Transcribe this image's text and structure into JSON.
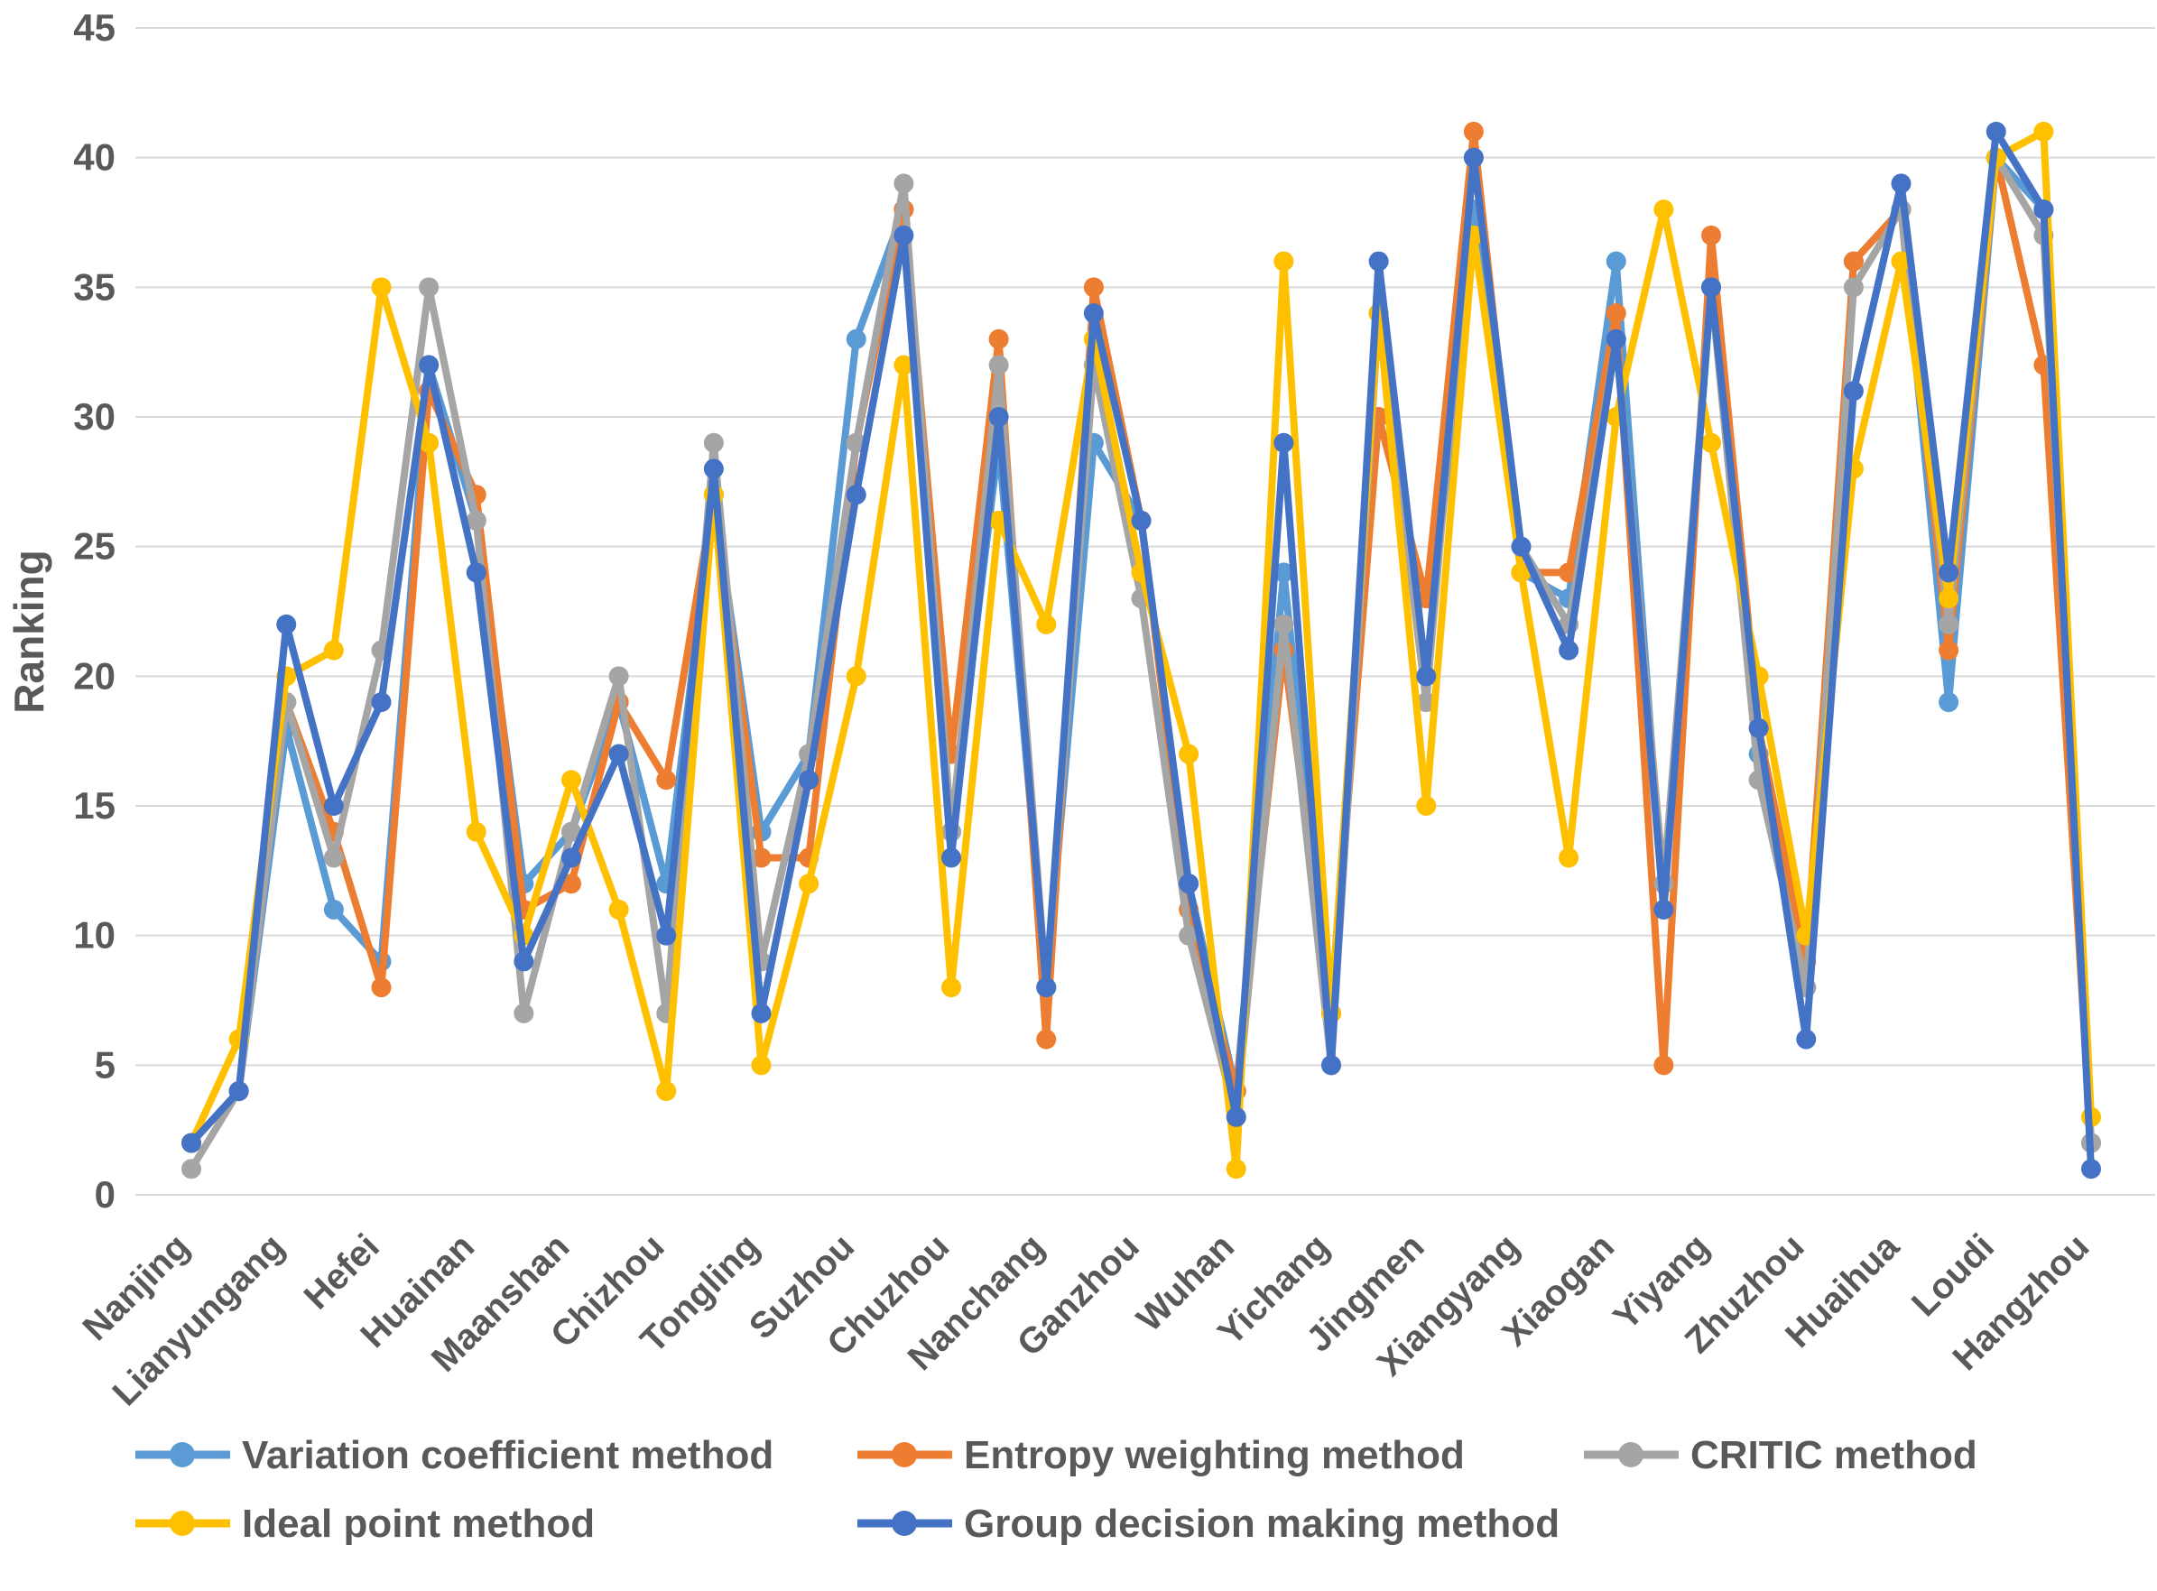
{
  "chart_data": {
    "type": "line",
    "title": "",
    "xlabel": "",
    "ylabel": "Ranking",
    "ylim": [
      0,
      45
    ],
    "ytick_step": 5,
    "yticks": [
      0,
      5,
      10,
      15,
      20,
      25,
      30,
      35,
      40,
      45
    ],
    "grid": true,
    "legend_position": "bottom",
    "marker": "circle",
    "axis_text_color": "#595959",
    "gridline_color": "#d9d9d9",
    "categories": [
      "Nanjing",
      "",
      "Lianyungang",
      "",
      "Hefei",
      "",
      "Huainan",
      "",
      "Maanshan",
      "",
      "Chizhou",
      "",
      "Tongling",
      "",
      "Suzhou",
      "",
      "Chuzhou",
      "",
      "Nanchang",
      "",
      "Ganzhou",
      "",
      "Wuhan",
      "",
      "Yichang",
      "",
      "Jingmen",
      "",
      "Xiangyang",
      "",
      "Xiaogan",
      "",
      "Yiyang",
      "",
      "Zhuzhou",
      "",
      "Huaihua",
      "",
      "Loudi",
      "",
      "Hangzhou"
    ],
    "series": [
      {
        "name": "Variation coefficient method",
        "color": "#5B9BD5",
        "values": [
          2,
          4,
          18,
          11,
          9,
          32,
          26,
          12,
          14,
          19,
          12,
          27,
          14,
          17,
          33,
          38,
          14,
          29,
          8,
          29,
          26,
          12,
          4,
          24,
          7,
          34,
          20,
          38,
          24,
          23,
          36,
          11,
          35,
          17,
          8,
          36,
          38,
          19,
          40,
          38,
          2
        ]
      },
      {
        "name": "Entropy weighting method",
        "color": "#ED7D31",
        "values": [
          2,
          4,
          19,
          14,
          8,
          31,
          27,
          11,
          12,
          19,
          16,
          27,
          13,
          13,
          29,
          38,
          17,
          33,
          6,
          35,
          26,
          11,
          4,
          21,
          7,
          30,
          23,
          41,
          24,
          24,
          34,
          5,
          37,
          18,
          9,
          36,
          38,
          21,
          40,
          32,
          2
        ]
      },
      {
        "name": "CRITIC method",
        "color": "#A5A5A5",
        "values": [
          1,
          4,
          19,
          13,
          21,
          35,
          26,
          7,
          14,
          20,
          7,
          29,
          9,
          17,
          29,
          39,
          14,
          32,
          8,
          32,
          23,
          10,
          3,
          22,
          5,
          34,
          19,
          40,
          25,
          22,
          33,
          12,
          35,
          16,
          8,
          35,
          38,
          22,
          40,
          37,
          2
        ]
      },
      {
        "name": "Ideal point method",
        "color": "#FFC000",
        "values": [
          2,
          6,
          20,
          21,
          35,
          29,
          14,
          10,
          16,
          11,
          4,
          27,
          5,
          12,
          20,
          32,
          8,
          26,
          22,
          33,
          24,
          17,
          1,
          36,
          7,
          34,
          15,
          37,
          24,
          13,
          30,
          38,
          29,
          20,
          10,
          28,
          36,
          23,
          40,
          41,
          3
        ]
      },
      {
        "name": "Group decision making method",
        "color": "#4472C4",
        "values": [
          2,
          4,
          22,
          15,
          19,
          32,
          24,
          9,
          13,
          17,
          10,
          28,
          7,
          16,
          27,
          37,
          13,
          30,
          8,
          34,
          26,
          12,
          3,
          29,
          5,
          36,
          20,
          40,
          25,
          21,
          33,
          11,
          35,
          18,
          6,
          31,
          39,
          24,
          41,
          38,
          1
        ]
      }
    ],
    "legend_rows": [
      [
        "Variation coefficient method",
        "Entropy weighting method",
        "CRITIC method"
      ],
      [
        "Ideal point method",
        "Group decision making method"
      ]
    ]
  },
  "layout_note": "ranking line chart, 41 categories, labels every 2nd category"
}
